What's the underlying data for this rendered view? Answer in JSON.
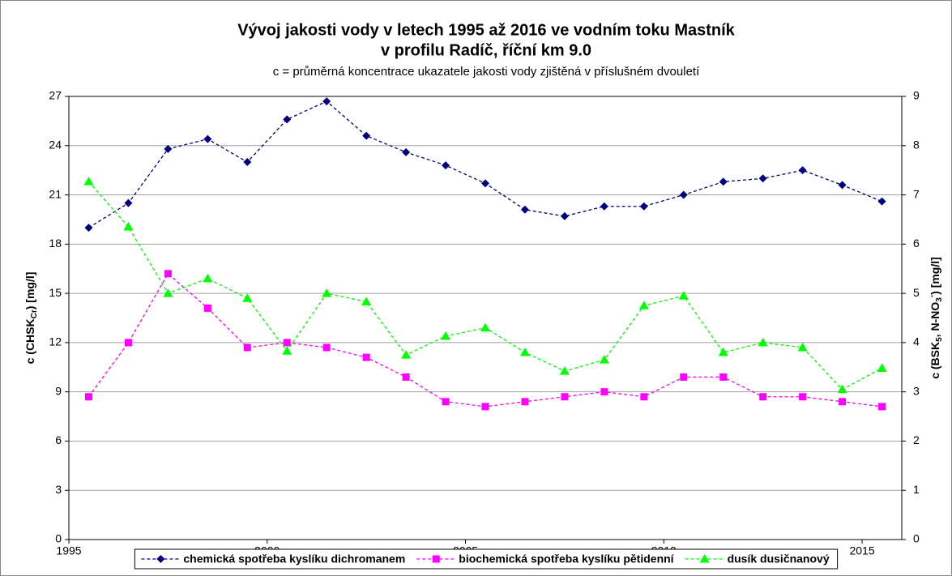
{
  "chart_data": {
    "type": "line",
    "title": "Vývoj jakosti vody v letech 1995 až 2016 ve vodním toku Mastník",
    "title2": "v profilu Radíč, říční km 9.0",
    "subtitle": "c = průměrná koncentrace ukazatele jakosti vody zjištěná v příslušném dvouletí",
    "ylabel": [
      {
        "text": "c (CHSK"
      },
      {
        "text": "Cr",
        "sub": true
      },
      {
        "text": ") [mg/l]"
      }
    ],
    "y2label": [
      {
        "text": "c (BSK"
      },
      {
        "text": "5",
        "sub": true
      },
      {
        "text": ", N-NO"
      },
      {
        "text": "3",
        "sub": true
      },
      {
        "text": "-",
        "sup": true
      },
      {
        "text": ") [mg/l]"
      }
    ],
    "x": [
      1995.5,
      1996.5,
      1997.5,
      1998.5,
      1999.5,
      2000.5,
      2001.5,
      2002.5,
      2003.5,
      2004.5,
      2005.5,
      2006.5,
      2007.5,
      2008.5,
      2009.5,
      2010.5,
      2011.5,
      2012.5,
      2013.5,
      2014.5,
      2015.5
    ],
    "xlim": [
      1995,
      2016
    ],
    "xticks": [
      1995,
      2000,
      2005,
      2010,
      2015
    ],
    "ylim": [
      0,
      27
    ],
    "yticks": [
      0,
      3,
      6,
      9,
      12,
      15,
      18,
      21,
      24,
      27
    ],
    "y2lim": [
      0,
      9
    ],
    "y2ticks": [
      0,
      1,
      2,
      3,
      4,
      5,
      6,
      7,
      8,
      9
    ],
    "grid": true,
    "legend": "bottom",
    "series": [
      {
        "name": "chemická spotřeba kyslíku dichromanem",
        "color": "#000080",
        "marker": "diamond",
        "axis": "y",
        "values": [
          19.0,
          20.5,
          23.8,
          24.4,
          23.0,
          25.6,
          26.7,
          24.6,
          23.6,
          22.8,
          21.7,
          20.1,
          19.7,
          20.3,
          20.3,
          21.0,
          21.8,
          22.0,
          22.5,
          21.6,
          20.6
        ]
      },
      {
        "name": "biochemická spotřeba kyslíku pětidenní",
        "color": "#ff00ff",
        "marker": "square",
        "axis": "y2",
        "values": [
          2.9,
          4.0,
          5.4,
          4.7,
          3.9,
          4.0,
          3.9,
          3.7,
          3.3,
          2.8,
          2.7,
          2.8,
          2.9,
          3.0,
          2.9,
          3.3,
          3.3,
          2.9,
          2.9,
          2.8,
          2.7
        ]
      },
      {
        "name": "dusík dusičnanový",
        "color": "#00ff00",
        "marker": "triangle",
        "axis": "y2",
        "values": [
          7.27,
          6.35,
          5.0,
          5.3,
          4.9,
          3.83,
          5.0,
          4.83,
          3.75,
          4.13,
          4.3,
          3.8,
          3.42,
          3.65,
          4.75,
          4.95,
          3.8,
          4.0,
          3.9,
          3.05,
          3.48
        ]
      }
    ]
  }
}
